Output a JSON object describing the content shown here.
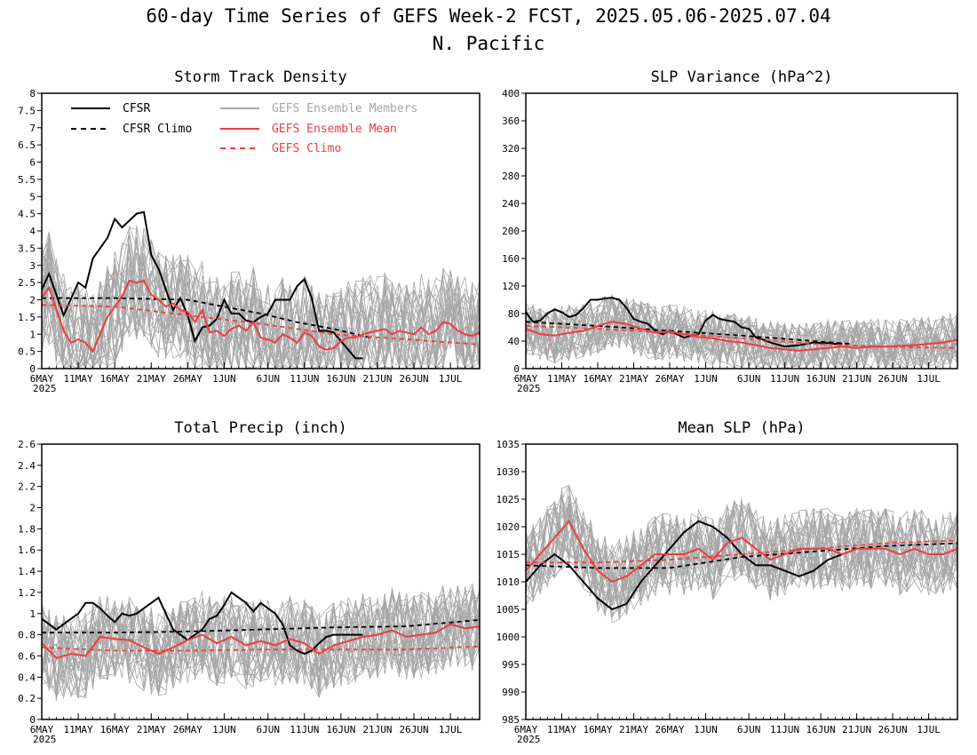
{
  "figure": {
    "title_line1": "60-day Time Series of GEFS Week-2 FCST, 2025.05.06-2025.07.04",
    "title_line2": "N. Pacific"
  },
  "colors": {
    "cfsr": "#000000",
    "members": "#a6a6a6",
    "ens_mean": "#f03c3c",
    "gefs_climo": "#f03c3c"
  },
  "legend": {
    "cfsr": "CFSR",
    "cfsr_climo": "CFSR Climo",
    "members": "GEFS Ensemble Members",
    "ens_mean": "GEFS Ensemble Mean",
    "gefs_climo": "GEFS Climo"
  },
  "chart_data": [
    {
      "type": "line",
      "title": "Storm Track Density",
      "xlabel": "",
      "ylabel": "",
      "x_range_days": [
        0,
        60
      ],
      "ylim": [
        0,
        8
      ],
      "yticks": [
        0,
        0.5,
        1,
        1.5,
        2,
        2.5,
        3,
        3.5,
        4,
        4.5,
        5,
        5.5,
        6,
        6.5,
        7,
        7.5,
        8
      ],
      "ytick_labels": [
        "0",
        "0.5",
        "1",
        "1.5",
        "2",
        "2.5",
        "3",
        "3.5",
        "4",
        "4.5",
        "5",
        "5.5",
        "6",
        "6.5",
        "7",
        "7.5",
        "8"
      ],
      "xtick_days": [
        0,
        5,
        10,
        15,
        20,
        25,
        31,
        36,
        41,
        46,
        51,
        56
      ],
      "xtick_labels": [
        "6MAY",
        "11MAY",
        "16MAY",
        "21MAY",
        "26MAY",
        "1JUN",
        "6JUN",
        "11JUN",
        "16JUN",
        "21JUN",
        "26JUN",
        "1JUL"
      ],
      "xtick_year": "2025",
      "members_envelope": {
        "low": 0.15,
        "high": 4.6,
        "count": 30
      },
      "series": [
        {
          "name": "CFSR",
          "style": "cfsr",
          "x": [
            0,
            1,
            3,
            5,
            6,
            7,
            8,
            9,
            10,
            11,
            12,
            13,
            14,
            15,
            16,
            17,
            18,
            19,
            20,
            21,
            22,
            23,
            24,
            25,
            26,
            27,
            28,
            29,
            30,
            31,
            32,
            33,
            34,
            35,
            36,
            37,
            38,
            39,
            40,
            41,
            42,
            43,
            44
          ],
          "y": [
            2.3,
            2.75,
            1.55,
            2.5,
            2.35,
            3.2,
            3.5,
            3.8,
            4.35,
            4.1,
            4.3,
            4.5,
            4.55,
            3.3,
            2.9,
            2.3,
            1.7,
            2.05,
            1.55,
            0.8,
            1.2,
            1.25,
            1.45,
            2.0,
            1.6,
            1.6,
            1.4,
            1.35,
            1.5,
            1.6,
            2.0,
            2.0,
            2.0,
            2.4,
            2.6,
            2.05,
            1.1,
            1.1,
            1.05,
            0.8,
            0.55,
            0.3,
            0.3
          ]
        },
        {
          "name": "CFSR Climo",
          "style": "cfsr_climo",
          "x": [
            0,
            10,
            20,
            25,
            30,
            35,
            40,
            45
          ],
          "y": [
            2.05,
            2.05,
            2.0,
            1.8,
            1.6,
            1.35,
            1.15,
            0.9
          ]
        },
        {
          "name": "GEFS Ensemble Mean",
          "style": "ens_mean",
          "x": [
            0,
            1,
            3,
            4,
            5,
            6,
            7,
            8,
            9,
            10,
            11,
            12,
            13,
            14,
            15,
            16,
            17,
            18,
            19,
            20,
            21,
            22,
            23,
            24,
            25,
            26,
            27,
            28,
            29,
            30,
            31,
            32,
            33,
            34,
            35,
            36,
            37,
            38,
            39,
            40,
            41,
            42,
            43,
            44,
            45,
            46,
            47,
            48,
            49,
            50,
            51,
            52,
            53,
            54,
            55,
            56,
            57,
            58,
            59,
            60
          ],
          "y": [
            2.05,
            2.35,
            1.1,
            0.75,
            0.85,
            0.75,
            0.5,
            1.0,
            1.5,
            1.8,
            2.1,
            2.55,
            2.5,
            2.55,
            2.15,
            2.0,
            1.8,
            1.9,
            1.7,
            1.65,
            1.35,
            1.7,
            1.05,
            1.1,
            0.95,
            1.15,
            1.25,
            1.1,
            1.35,
            0.9,
            0.85,
            0.75,
            1.0,
            0.9,
            0.75,
            1.05,
            0.95,
            0.65,
            0.55,
            0.6,
            0.8,
            0.9,
            0.9,
            1.0,
            1.05,
            1.1,
            1.15,
            1.0,
            1.1,
            1.05,
            1.0,
            1.2,
            1.0,
            1.1,
            1.35,
            1.3,
            1.1,
            1.0,
            0.95,
            1.05
          ]
        },
        {
          "name": "GEFS Climo",
          "style": "gefs_climo",
          "x": [
            0,
            10,
            20,
            30,
            40,
            50,
            60
          ],
          "y": [
            1.85,
            1.8,
            1.55,
            1.3,
            1.0,
            0.85,
            0.7
          ]
        }
      ]
    },
    {
      "type": "line",
      "title": "SLP Variance (hPa^2)",
      "xlabel": "",
      "ylabel": "",
      "x_range_days": [
        0,
        60
      ],
      "ylim": [
        0,
        400
      ],
      "yticks": [
        0,
        40,
        80,
        120,
        160,
        200,
        240,
        280,
        320,
        360,
        400
      ],
      "ytick_labels": [
        "0",
        "40",
        "80",
        "120",
        "160",
        "200",
        "240",
        "280",
        "320",
        "360",
        "400"
      ],
      "xtick_days": [
        0,
        5,
        10,
        15,
        20,
        25,
        31,
        36,
        41,
        46,
        51,
        56
      ],
      "xtick_labels": [
        "6MAY",
        "11MAY",
        "16MAY",
        "21MAY",
        "26MAY",
        "1JUN",
        "6JUN",
        "11JUN",
        "16JUN",
        "21JUN",
        "26JUN",
        "1JUL"
      ],
      "xtick_year": "2025",
      "members_envelope": {
        "low": 12,
        "high": 120,
        "count": 30
      },
      "series": [
        {
          "name": "CFSR",
          "style": "cfsr",
          "x": [
            0,
            1,
            2,
            3,
            4,
            5,
            6,
            7,
            8,
            9,
            10,
            11,
            12,
            13,
            14,
            15,
            16,
            17,
            18,
            19,
            20,
            21,
            22,
            23,
            24,
            25,
            26,
            27,
            28,
            29,
            30,
            31,
            32,
            33,
            34,
            35,
            36,
            37,
            38,
            39,
            40,
            41,
            42,
            43,
            44
          ],
          "y": [
            82,
            68,
            70,
            80,
            86,
            82,
            75,
            78,
            88,
            100,
            100,
            102,
            103,
            100,
            88,
            72,
            68,
            65,
            55,
            50,
            55,
            50,
            45,
            48,
            50,
            70,
            78,
            72,
            70,
            68,
            60,
            58,
            45,
            42,
            38,
            35,
            32,
            33,
            34,
            36,
            38,
            37,
            37,
            36,
            36
          ]
        },
        {
          "name": "CFSR Climo",
          "style": "cfsr_climo",
          "x": [
            0,
            10,
            20,
            30,
            40,
            45
          ],
          "y": [
            68,
            62,
            55,
            48,
            40,
            36
          ]
        },
        {
          "name": "GEFS Ensemble Mean",
          "style": "ens_mean",
          "x": [
            0,
            2,
            4,
            6,
            8,
            10,
            12,
            14,
            16,
            18,
            20,
            22,
            24,
            26,
            28,
            30,
            32,
            34,
            36,
            38,
            40,
            42,
            44,
            46,
            48,
            50,
            52,
            54,
            56,
            58,
            60
          ],
          "y": [
            58,
            50,
            48,
            52,
            55,
            62,
            68,
            65,
            58,
            52,
            54,
            50,
            46,
            44,
            40,
            38,
            34,
            30,
            28,
            26,
            28,
            30,
            32,
            30,
            32,
            32,
            33,
            34,
            36,
            38,
            42
          ]
        },
        {
          "name": "GEFS Climo",
          "style": "gefs_climo",
          "x": [
            0,
            10,
            20,
            30,
            40,
            50,
            60
          ],
          "y": [
            62,
            58,
            52,
            44,
            36,
            32,
            30
          ]
        }
      ]
    },
    {
      "type": "line",
      "title": "Total Precip (inch)",
      "xlabel": "",
      "ylabel": "",
      "x_range_days": [
        0,
        60
      ],
      "ylim": [
        0,
        2.6
      ],
      "yticks": [
        0,
        0.2,
        0.4,
        0.6,
        0.8,
        1,
        1.2,
        1.4,
        1.6,
        1.8,
        2,
        2.2,
        2.4,
        2.6
      ],
      "ytick_labels": [
        "0",
        "0.2",
        "0.4",
        "0.6",
        "0.8",
        "1",
        "1.2",
        "1.4",
        "1.6",
        "1.8",
        "2",
        "2.2",
        "2.4",
        "2.6"
      ],
      "xtick_days": [
        0,
        5,
        10,
        15,
        20,
        25,
        31,
        36,
        41,
        46,
        51,
        56
      ],
      "xtick_labels": [
        "6MAY",
        "11MAY",
        "16MAY",
        "21MAY",
        "26MAY",
        "1JUN",
        "6JUN",
        "11JUN",
        "16JUN",
        "21JUN",
        "26JUN",
        "1JUL"
      ],
      "xtick_year": "2025",
      "members_envelope": {
        "low": 0.25,
        "high": 1.35,
        "count": 30
      },
      "series": [
        {
          "name": "CFSR",
          "style": "cfsr",
          "x": [
            0,
            2,
            4,
            5,
            6,
            7,
            8,
            9,
            10,
            11,
            12,
            13,
            14,
            15,
            16,
            17,
            18,
            19,
            20,
            21,
            22,
            23,
            24,
            25,
            26,
            27,
            28,
            29,
            30,
            31,
            32,
            33,
            34,
            35,
            36,
            37,
            38,
            39,
            40,
            41,
            42,
            43,
            44
          ],
          "y": [
            0.95,
            0.85,
            0.95,
            1.0,
            1.1,
            1.1,
            1.05,
            0.98,
            0.92,
            1.0,
            0.98,
            1.0,
            1.05,
            1.1,
            1.15,
            1.0,
            0.85,
            0.8,
            0.75,
            0.8,
            0.85,
            0.95,
            0.98,
            1.08,
            1.2,
            1.15,
            1.1,
            1.02,
            1.1,
            1.05,
            1.0,
            0.9,
            0.7,
            0.65,
            0.62,
            0.65,
            0.72,
            0.78,
            0.8,
            0.8,
            0.8,
            0.8,
            0.8
          ]
        },
        {
          "name": "CFSR Climo",
          "style": "cfsr_climo",
          "x": [
            0,
            10,
            20,
            30,
            40,
            50,
            60
          ],
          "y": [
            0.82,
            0.82,
            0.83,
            0.85,
            0.87,
            0.88,
            0.94
          ]
        },
        {
          "name": "GEFS Ensemble Mean",
          "style": "ens_mean",
          "x": [
            0,
            2,
            4,
            6,
            8,
            10,
            12,
            14,
            16,
            18,
            20,
            22,
            24,
            26,
            28,
            30,
            32,
            34,
            36,
            38,
            40,
            42,
            44,
            46,
            48,
            50,
            52,
            54,
            56,
            58,
            60
          ],
          "y": [
            0.72,
            0.58,
            0.62,
            0.6,
            0.78,
            0.76,
            0.75,
            0.68,
            0.62,
            0.68,
            0.75,
            0.8,
            0.72,
            0.78,
            0.7,
            0.74,
            0.7,
            0.76,
            0.72,
            0.62,
            0.7,
            0.74,
            0.78,
            0.8,
            0.84,
            0.78,
            0.8,
            0.82,
            0.9,
            0.86,
            0.88
          ]
        },
        {
          "name": "GEFS Climo",
          "style": "gefs_climo",
          "x": [
            0,
            10,
            20,
            30,
            40,
            50,
            60
          ],
          "y": [
            0.68,
            0.65,
            0.65,
            0.66,
            0.66,
            0.66,
            0.69
          ]
        }
      ]
    },
    {
      "type": "line",
      "title": "Mean SLP (hPa)",
      "xlabel": "",
      "ylabel": "",
      "x_range_days": [
        0,
        60
      ],
      "ylim": [
        985,
        1035
      ],
      "yticks": [
        985,
        990,
        995,
        1000,
        1005,
        1010,
        1015,
        1020,
        1025,
        1030,
        1035
      ],
      "ytick_labels": [
        "985",
        "990",
        "995",
        "1000",
        "1005",
        "1010",
        "1015",
        "1020",
        "1025",
        "1030",
        "1035"
      ],
      "xtick_days": [
        0,
        5,
        10,
        15,
        20,
        25,
        31,
        36,
        41,
        46,
        51,
        56
      ],
      "xtick_labels": [
        "6MAY",
        "11MAY",
        "16MAY",
        "21MAY",
        "26MAY",
        "1JUN",
        "6JUN",
        "11JUN",
        "16JUN",
        "21JUN",
        "26JUN",
        "1JUL"
      ],
      "xtick_year": "2025",
      "members_envelope": {
        "low": 1006,
        "high": 1026,
        "count": 30
      },
      "series": [
        {
          "name": "CFSR",
          "style": "cfsr",
          "x": [
            0,
            2,
            4,
            6,
            8,
            10,
            12,
            14,
            16,
            18,
            20,
            22,
            24,
            26,
            28,
            30,
            32,
            34,
            36,
            38,
            40,
            42,
            44,
            46
          ],
          "y": [
            1010,
            1013,
            1015,
            1013,
            1010,
            1007,
            1005,
            1006,
            1010,
            1013,
            1016,
            1019,
            1021,
            1020,
            1018,
            1015,
            1013,
            1013,
            1012,
            1011,
            1012,
            1014,
            1015,
            1016
          ]
        },
        {
          "name": "CFSR Climo",
          "style": "cfsr_climo",
          "x": [
            0,
            10,
            20,
            30,
            40,
            50,
            60
          ],
          "y": [
            1013,
            1012.5,
            1012.5,
            1014.5,
            1015.5,
            1016.5,
            1017
          ]
        },
        {
          "name": "GEFS Ensemble Mean",
          "style": "ens_mean",
          "x": [
            0,
            2,
            4,
            6,
            8,
            10,
            12,
            14,
            16,
            18,
            20,
            22,
            24,
            26,
            28,
            30,
            32,
            34,
            36,
            38,
            40,
            42,
            44,
            46,
            48,
            50,
            52,
            54,
            56,
            58,
            60
          ],
          "y": [
            1012,
            1015,
            1018,
            1021,
            1016,
            1012,
            1010,
            1011,
            1013,
            1015,
            1015,
            1015,
            1016,
            1014,
            1017,
            1018,
            1016,
            1014,
            1015,
            1016,
            1016,
            1016,
            1015,
            1016,
            1016,
            1016,
            1015,
            1016,
            1015,
            1015,
            1016
          ]
        },
        {
          "name": "GEFS Climo",
          "style": "gefs_climo",
          "x": [
            0,
            10,
            20,
            30,
            40,
            50,
            60
          ],
          "y": [
            1013.5,
            1013.5,
            1014,
            1015,
            1016,
            1017,
            1017.5
          ]
        }
      ]
    }
  ]
}
